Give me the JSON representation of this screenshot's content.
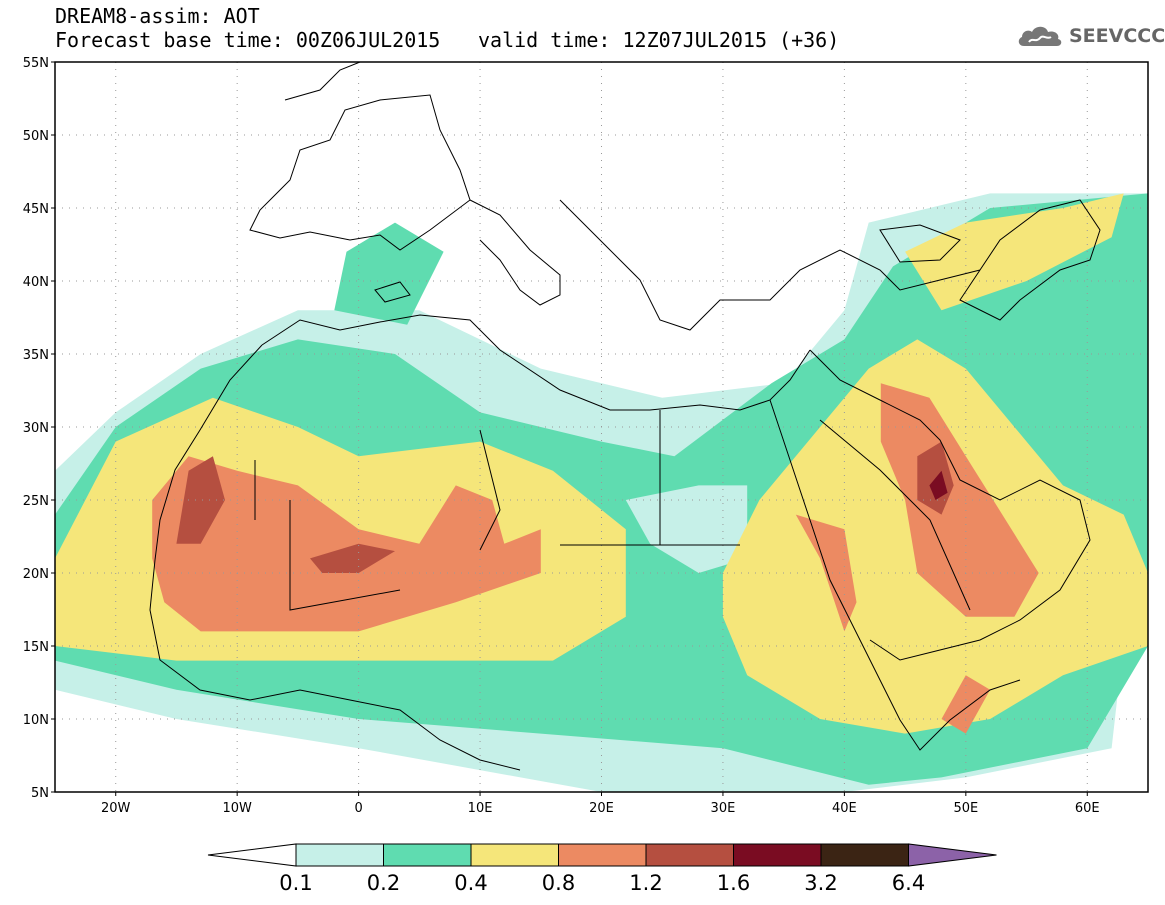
{
  "header": {
    "title_line1": "DREAM8-assim: AOT",
    "title_line2": "Forecast base time: 00Z06JUL2015",
    "valid_time": "valid time: 12Z07JUL2015 (+36)",
    "logo_text": "SEEVCCC"
  },
  "map": {
    "lon_range": [
      -25,
      65
    ],
    "lat_range": [
      5,
      55
    ],
    "lat_ticks": [
      {
        "value": 5,
        "label": "5N"
      },
      {
        "value": 10,
        "label": "10N"
      },
      {
        "value": 15,
        "label": "15N"
      },
      {
        "value": 20,
        "label": "20N"
      },
      {
        "value": 25,
        "label": "25N"
      },
      {
        "value": 30,
        "label": "30N"
      },
      {
        "value": 35,
        "label": "35N"
      },
      {
        "value": 40,
        "label": "40N"
      },
      {
        "value": 45,
        "label": "45N"
      },
      {
        "value": 50,
        "label": "50N"
      },
      {
        "value": 55,
        "label": "55N"
      }
    ],
    "lon_ticks": [
      {
        "value": -20,
        "label": "20W"
      },
      {
        "value": -10,
        "label": "10W"
      },
      {
        "value": 0,
        "label": "0"
      },
      {
        "value": 10,
        "label": "10E"
      },
      {
        "value": 20,
        "label": "20E"
      },
      {
        "value": 30,
        "label": "30E"
      },
      {
        "value": 40,
        "label": "40E"
      },
      {
        "value": 50,
        "label": "50E"
      },
      {
        "value": 60,
        "label": "60E"
      }
    ],
    "gridlines": "dotted",
    "aot_regions": [
      {
        "level": "0.1-0.2",
        "color": "#c6f0e8",
        "lonlat": [
          [
            -25,
            20
          ],
          [
            -25,
            27
          ],
          [
            -20,
            31
          ],
          [
            -13,
            35
          ],
          [
            -5,
            38
          ],
          [
            5,
            38
          ],
          [
            15,
            34
          ],
          [
            25,
            32
          ],
          [
            35,
            33
          ],
          [
            40,
            38
          ],
          [
            42,
            44
          ],
          [
            52,
            46
          ],
          [
            65,
            46
          ],
          [
            65,
            30
          ],
          [
            62,
            8
          ],
          [
            50,
            6
          ],
          [
            40,
            5
          ],
          [
            20,
            5
          ],
          [
            0,
            8
          ],
          [
            -15,
            10
          ],
          [
            -25,
            12
          ]
        ]
      },
      {
        "level": "0.2-0.4",
        "color": "#5fdcb0",
        "lonlat": [
          [
            -25,
            16
          ],
          [
            -25,
            24
          ],
          [
            -20,
            30
          ],
          [
            -13,
            34
          ],
          [
            -5,
            36
          ],
          [
            3,
            35
          ],
          [
            10,
            31
          ],
          [
            20,
            29
          ],
          [
            26,
            28
          ],
          [
            34,
            33
          ],
          [
            40,
            36
          ],
          [
            44,
            41
          ],
          [
            52,
            45
          ],
          [
            65,
            46
          ],
          [
            65,
            15
          ],
          [
            60,
            8
          ],
          [
            48,
            6
          ],
          [
            42,
            5.5
          ],
          [
            30,
            8
          ],
          [
            15,
            9
          ],
          [
            0,
            10
          ],
          [
            -15,
            12
          ],
          [
            -25,
            14
          ]
        ]
      },
      {
        "level": "0.2-0.4",
        "color": "#5fdcb0",
        "lonlat": [
          [
            -2,
            38
          ],
          [
            4,
            37
          ],
          [
            7,
            42
          ],
          [
            3,
            44
          ],
          [
            -1,
            42
          ]
        ]
      },
      {
        "level": "0.1-0.2",
        "color": "#c6f0e8",
        "lonlat": [
          [
            22,
            25
          ],
          [
            28,
            26
          ],
          [
            32,
            26
          ],
          [
            32,
            21
          ],
          [
            28,
            20
          ],
          [
            24,
            22
          ]
        ]
      },
      {
        "level": "0.4-0.8",
        "color": "#f5e67a",
        "lonlat": [
          [
            -25,
            15
          ],
          [
            -25,
            21
          ],
          [
            -20,
            29
          ],
          [
            -12,
            32
          ],
          [
            -5,
            30
          ],
          [
            0,
            28
          ],
          [
            10,
            29
          ],
          [
            16,
            27
          ],
          [
            22,
            23
          ],
          [
            22,
            17
          ],
          [
            16,
            14
          ],
          [
            5,
            14
          ],
          [
            -5,
            14
          ],
          [
            -15,
            14
          ]
        ]
      },
      {
        "level": "0.4-0.8",
        "color": "#f5e67a",
        "lonlat": [
          [
            30,
            20
          ],
          [
            33,
            25
          ],
          [
            38,
            30
          ],
          [
            42,
            34
          ],
          [
            46,
            36
          ],
          [
            50,
            34
          ],
          [
            54,
            30
          ],
          [
            58,
            26
          ],
          [
            63,
            24
          ],
          [
            65,
            20
          ],
          [
            65,
            15
          ],
          [
            58,
            13
          ],
          [
            52,
            10
          ],
          [
            45,
            9
          ],
          [
            38,
            10
          ],
          [
            32,
            13
          ],
          [
            30,
            17
          ]
        ]
      },
      {
        "level": "0.4-0.8",
        "color": "#f5e67a",
        "lonlat": [
          [
            45,
            42
          ],
          [
            50,
            44
          ],
          [
            58,
            45
          ],
          [
            63,
            46
          ],
          [
            62,
            43
          ],
          [
            55,
            40
          ],
          [
            48,
            38
          ]
        ]
      },
      {
        "level": "0.8-1.2",
        "color": "#ec8a62",
        "lonlat": [
          [
            -17,
            21
          ],
          [
            -17,
            25
          ],
          [
            -14,
            28
          ],
          [
            -10,
            27
          ],
          [
            -5,
            26
          ],
          [
            0,
            23
          ],
          [
            5,
            22
          ],
          [
            8,
            26
          ],
          [
            11,
            25
          ],
          [
            12,
            22
          ],
          [
            15,
            23
          ],
          [
            15,
            20
          ],
          [
            8,
            18
          ],
          [
            0,
            16
          ],
          [
            -8,
            16
          ],
          [
            -13,
            16
          ],
          [
            -16,
            18
          ]
        ]
      },
      {
        "level": "0.8-1.2",
        "color": "#ec8a62",
        "lonlat": [
          [
            36,
            24
          ],
          [
            38,
            21
          ],
          [
            40,
            16
          ],
          [
            41,
            18
          ],
          [
            40,
            23
          ]
        ]
      },
      {
        "level": "0.8-1.2",
        "color": "#ec8a62",
        "lonlat": [
          [
            43,
            33
          ],
          [
            47,
            32
          ],
          [
            50,
            28
          ],
          [
            53,
            24
          ],
          [
            56,
            20
          ],
          [
            54,
            17
          ],
          [
            50,
            17
          ],
          [
            46,
            20
          ],
          [
            45,
            25
          ],
          [
            43,
            29
          ]
        ]
      },
      {
        "level": "0.8-1.2",
        "color": "#ec8a62",
        "lonlat": [
          [
            50,
            13
          ],
          [
            52,
            12
          ],
          [
            50,
            9
          ],
          [
            48,
            10
          ]
        ]
      },
      {
        "level": "1.2-1.6",
        "color": "#b54f40",
        "lonlat": [
          [
            -15,
            22
          ],
          [
            -14,
            27
          ],
          [
            -12,
            28
          ],
          [
            -11,
            25
          ],
          [
            -13,
            22
          ]
        ]
      },
      {
        "level": "1.2-1.6",
        "color": "#b54f40",
        "lonlat": [
          [
            -4,
            21
          ],
          [
            0,
            22
          ],
          [
            3,
            21.5
          ],
          [
            0,
            20
          ],
          [
            -3,
            20
          ]
        ]
      },
      {
        "level": "1.2-1.6",
        "color": "#b54f40",
        "lonlat": [
          [
            46,
            28
          ],
          [
            48,
            29
          ],
          [
            49,
            26
          ],
          [
            48,
            24
          ],
          [
            46,
            25
          ]
        ]
      },
      {
        "level": "1.6-3.2",
        "color": "#7a0c22",
        "lonlat": [
          [
            47,
            26
          ],
          [
            48,
            27
          ],
          [
            48.5,
            25.5
          ],
          [
            47.5,
            25
          ]
        ]
      }
    ],
    "coastline_color": "#000000"
  },
  "colorbar": {
    "colors": [
      "#ffffff",
      "#c6f0e8",
      "#5fdcb0",
      "#f5e67a",
      "#ec8a62",
      "#b54f40",
      "#7a0c22",
      "#3b2414",
      "#8c62a8"
    ],
    "labels": [
      "0.1",
      "0.2",
      "0.4",
      "0.8",
      "1.2",
      "1.6",
      "3.2",
      "6.4"
    ]
  }
}
